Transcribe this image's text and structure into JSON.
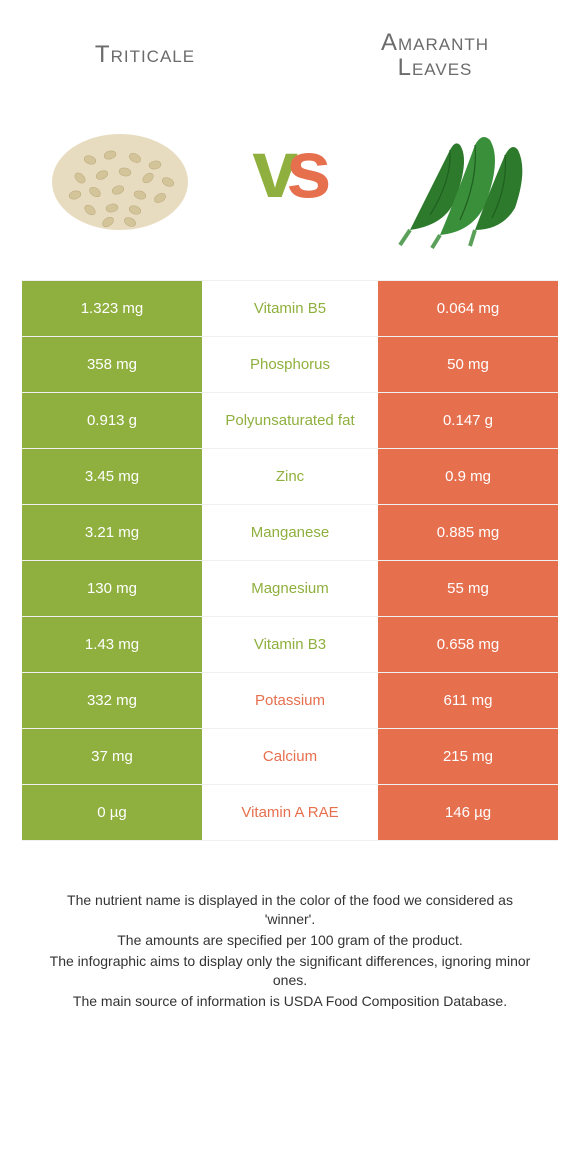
{
  "colors": {
    "green": "#8fb03e",
    "orange": "#e66f4e",
    "mid_text_default": "#6b6b6b"
  },
  "left_food": {
    "title": "Triticale"
  },
  "right_food": {
    "title_line1": "Amaranth",
    "title_line2": "Leaves"
  },
  "vs": {
    "v": "v",
    "s": "s"
  },
  "rows": [
    {
      "left": "1.323 mg",
      "name": "Vitamin B5",
      "right": "0.064 mg",
      "winner": "left"
    },
    {
      "left": "358 mg",
      "name": "Phosphorus",
      "right": "50 mg",
      "winner": "left"
    },
    {
      "left": "0.913 g",
      "name": "Polyunsaturated fat",
      "right": "0.147 g",
      "winner": "left"
    },
    {
      "left": "3.45 mg",
      "name": "Zinc",
      "right": "0.9 mg",
      "winner": "left"
    },
    {
      "left": "3.21 mg",
      "name": "Manganese",
      "right": "0.885 mg",
      "winner": "left"
    },
    {
      "left": "130 mg",
      "name": "Magnesium",
      "right": "55 mg",
      "winner": "left"
    },
    {
      "left": "1.43 mg",
      "name": "Vitamin B3",
      "right": "0.658 mg",
      "winner": "left"
    },
    {
      "left": "332 mg",
      "name": "Potassium",
      "right": "611 mg",
      "winner": "right"
    },
    {
      "left": "37 mg",
      "name": "Calcium",
      "right": "215 mg",
      "winner": "right"
    },
    {
      "left": "0 µg",
      "name": "Vitamin A RAE",
      "right": "146 µg",
      "winner": "right"
    }
  ],
  "footer": {
    "line1": "The nutrient name is displayed in the color of the food we considered as 'winner'.",
    "line2": "The amounts are specified per 100 gram of the product.",
    "line3": "The infographic aims to display only the significant differences, ignoring minor ones.",
    "line4": "The main source of information is USDA Food Composition Database."
  }
}
